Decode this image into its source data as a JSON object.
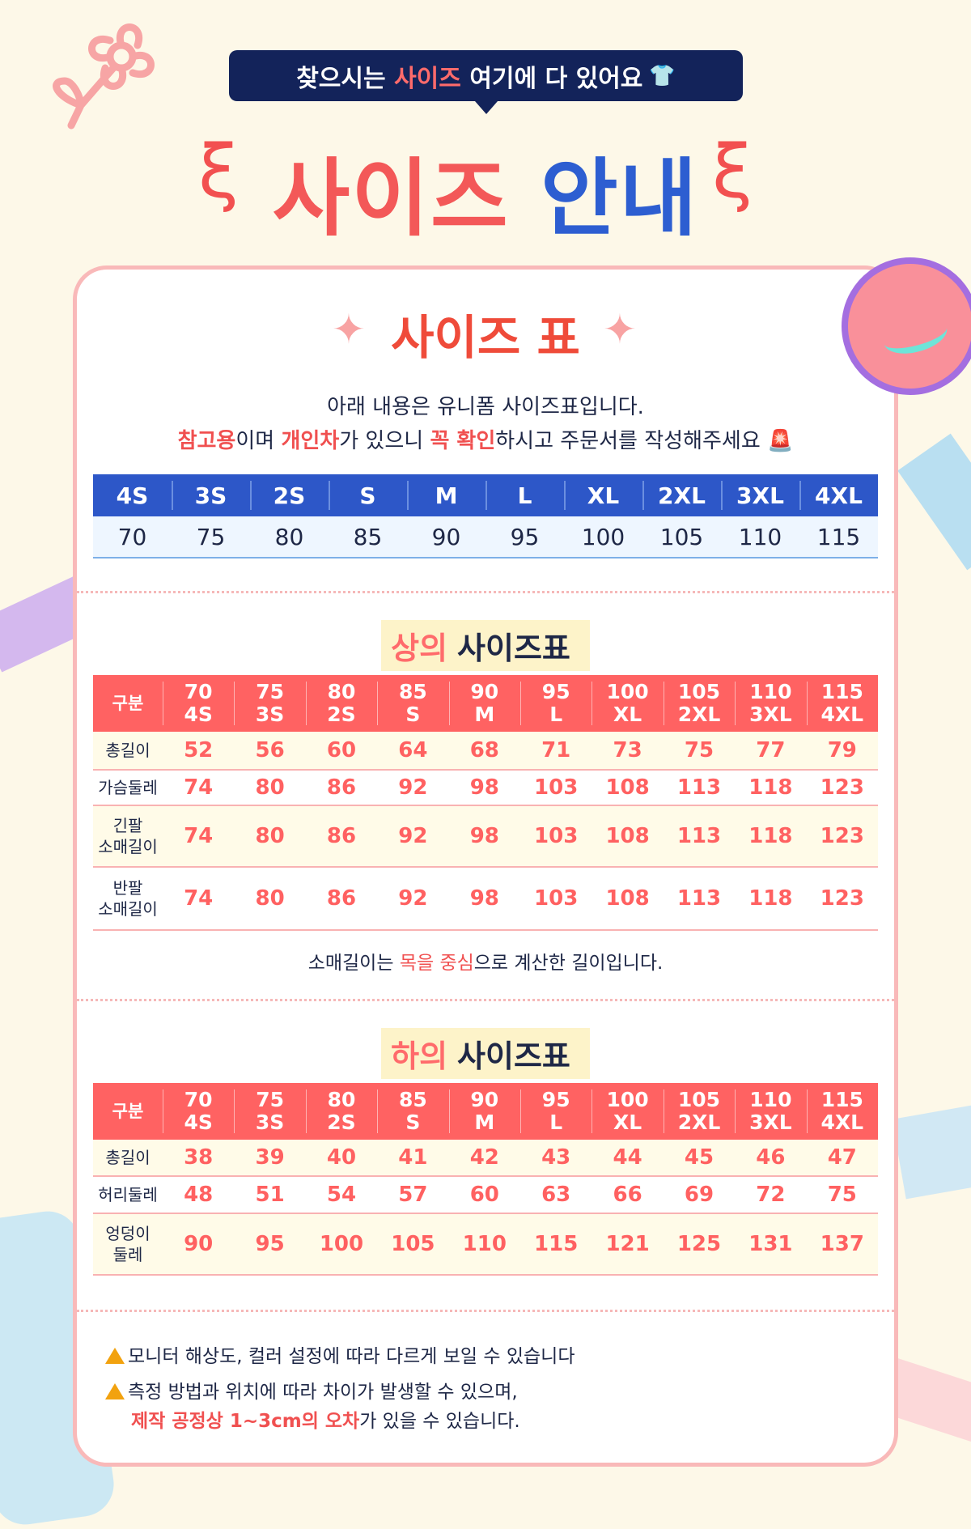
{
  "banner": {
    "pre": "찾으시는 ",
    "highlight": "사이즈",
    "post": " 여기에 다 있어요",
    "icon": "tshirt-icon"
  },
  "title": {
    "part1": "사이즈",
    "part2": "안내"
  },
  "card": {
    "title": "사이즈 표",
    "intro1": "아래 내용은 유니폼 사이즈표입니다.",
    "intro2": {
      "h1": "참고용",
      "t1": "이며 ",
      "h2": "개인차",
      "t2": "가 있으니 ",
      "h3": "꼭 확인",
      "t3": "하시고 주문서를 작성해주세요",
      "icon": "siren-icon"
    },
    "size_bar": {
      "labels": [
        "4S",
        "3S",
        "2S",
        "S",
        "M",
        "L",
        "XL",
        "2XL",
        "3XL",
        "4XL"
      ],
      "values": [
        "70",
        "75",
        "80",
        "85",
        "90",
        "95",
        "100",
        "105",
        "110",
        "115"
      ]
    },
    "top": {
      "title_h": "상의",
      "title_t": " 사이즈표",
      "header_label": "구분",
      "columns": [
        [
          "70",
          "4S"
        ],
        [
          "75",
          "3S"
        ],
        [
          "80",
          "2S"
        ],
        [
          "85",
          "S"
        ],
        [
          "90",
          "M"
        ],
        [
          "95",
          "L"
        ],
        [
          "100",
          "XL"
        ],
        [
          "105",
          "2XL"
        ],
        [
          "110",
          "3XL"
        ],
        [
          "115",
          "4XL"
        ]
      ],
      "rows": [
        {
          "label": "총길이",
          "values": [
            "52",
            "56",
            "60",
            "64",
            "68",
            "71",
            "73",
            "75",
            "77",
            "79"
          ]
        },
        {
          "label": "가슴둘레",
          "values": [
            "74",
            "80",
            "86",
            "92",
            "98",
            "103",
            "108",
            "113",
            "118",
            "123"
          ]
        },
        {
          "label": "긴팔\n소매길이",
          "values": [
            "74",
            "80",
            "86",
            "92",
            "98",
            "103",
            "108",
            "113",
            "118",
            "123"
          ]
        },
        {
          "label": "반팔\n소매길이",
          "values": [
            "74",
            "80",
            "86",
            "92",
            "98",
            "103",
            "108",
            "113",
            "118",
            "123"
          ]
        }
      ],
      "note": {
        "t1": "소매길이는 ",
        "h1": "목을 중심",
        "t2": "으로 계산한 길이입니다."
      }
    },
    "bottom": {
      "title_h": "하의",
      "title_t": " 사이즈표",
      "header_label": "구분",
      "columns": [
        [
          "70",
          "4S"
        ],
        [
          "75",
          "3S"
        ],
        [
          "80",
          "2S"
        ],
        [
          "85",
          "S"
        ],
        [
          "90",
          "M"
        ],
        [
          "95",
          "L"
        ],
        [
          "100",
          "XL"
        ],
        [
          "105",
          "2XL"
        ],
        [
          "110",
          "3XL"
        ],
        [
          "115",
          "4XL"
        ]
      ],
      "rows": [
        {
          "label": "총길이",
          "values": [
            "38",
            "39",
            "40",
            "41",
            "42",
            "43",
            "44",
            "45",
            "46",
            "47"
          ]
        },
        {
          "label": "허리둘레",
          "values": [
            "48",
            "51",
            "54",
            "57",
            "60",
            "63",
            "66",
            "69",
            "72",
            "75"
          ]
        },
        {
          "label": "엉덩이\n둘레",
          "values": [
            "90",
            "95",
            "100",
            "105",
            "110",
            "115",
            "121",
            "125",
            "131",
            "137"
          ]
        }
      ]
    },
    "warnings": {
      "w1": "모니터 해상도, 컬러 설정에 따라 다르게 보일 수 있습니다",
      "w2": "측정 방법과 위치에 따라 차이가 발생할 수 있으며,",
      "w3h": "제작 공정상 1~3cm의 오차",
      "w3t": "가 있을 수 있습니다."
    }
  },
  "colors": {
    "navy": "#13235a",
    "red": "#ff6262",
    "blue": "#2d57c8",
    "card_border": "#f9b9b9",
    "bg": "#fdf8e8"
  }
}
